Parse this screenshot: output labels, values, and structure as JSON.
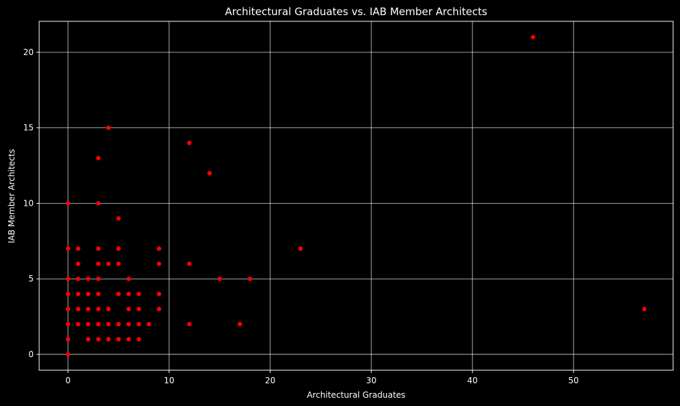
{
  "chart_data": {
    "type": "scatter",
    "title": "Architectural Graduates vs. IAB Member Architects",
    "xlabel": "Architectural Graduates",
    "ylabel": "IAB Member Architects",
    "xlim": [
      -2.85,
      59.85
    ],
    "ylim": [
      -1.05,
      22.05
    ],
    "xticks": [
      0,
      10,
      20,
      30,
      40,
      50
    ],
    "yticks": [
      0,
      5,
      10,
      15,
      20
    ],
    "grid": true,
    "colors": {
      "background": "#000000",
      "marker": "#ff0000",
      "text": "#ffffff",
      "grid": "#ffffff"
    },
    "points": [
      [
        0,
        0
      ],
      [
        0,
        1
      ],
      [
        0,
        2
      ],
      [
        0,
        3
      ],
      [
        0,
        4
      ],
      [
        0,
        5
      ],
      [
        0,
        7
      ],
      [
        0,
        10
      ],
      [
        1,
        2
      ],
      [
        1,
        3
      ],
      [
        1,
        4
      ],
      [
        1,
        5
      ],
      [
        1,
        6
      ],
      [
        1,
        7
      ],
      [
        2,
        1
      ],
      [
        2,
        2
      ],
      [
        2,
        3
      ],
      [
        2,
        4
      ],
      [
        2,
        5
      ],
      [
        3,
        1
      ],
      [
        3,
        2
      ],
      [
        3,
        3
      ],
      [
        3,
        4
      ],
      [
        3,
        5
      ],
      [
        3,
        6
      ],
      [
        3,
        7
      ],
      [
        3,
        10
      ],
      [
        3,
        13
      ],
      [
        4,
        1
      ],
      [
        4,
        2
      ],
      [
        4,
        3
      ],
      [
        4,
        6
      ],
      [
        4,
        15
      ],
      [
        5,
        1
      ],
      [
        5,
        2
      ],
      [
        5,
        4
      ],
      [
        5,
        6
      ],
      [
        5,
        7
      ],
      [
        5,
        9
      ],
      [
        6,
        1
      ],
      [
        6,
        2
      ],
      [
        6,
        3
      ],
      [
        6,
        4
      ],
      [
        6,
        5
      ],
      [
        7,
        1
      ],
      [
        7,
        2
      ],
      [
        7,
        3
      ],
      [
        7,
        4
      ],
      [
        8,
        2
      ],
      [
        9,
        3
      ],
      [
        9,
        4
      ],
      [
        9,
        6
      ],
      [
        9,
        7
      ],
      [
        12,
        2
      ],
      [
        12,
        6
      ],
      [
        12,
        14
      ],
      [
        14,
        12
      ],
      [
        15,
        5
      ],
      [
        17,
        2
      ],
      [
        18,
        5
      ],
      [
        23,
        7
      ],
      [
        46,
        21
      ],
      [
        57,
        3
      ]
    ]
  }
}
